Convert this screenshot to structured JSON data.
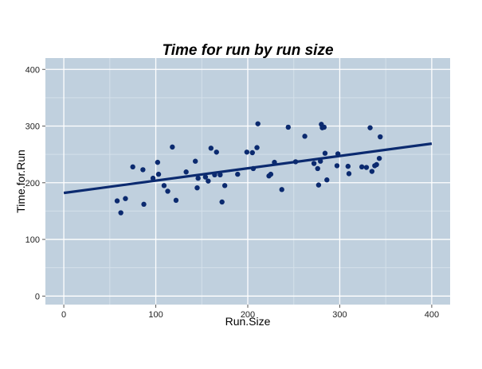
{
  "chart_data": {
    "type": "scatter",
    "title": "Time for run by run size",
    "xlabel": "Run.Size",
    "ylabel": "Time.for.Run",
    "xlim": [
      -20,
      420
    ],
    "ylim": [
      -15,
      420
    ],
    "x_ticks": [
      0,
      100,
      200,
      300,
      400
    ],
    "y_ticks": [
      0,
      100,
      200,
      300,
      400
    ],
    "grid": true,
    "legend": "none",
    "colors": {
      "panel": "#c0d0de",
      "grid_major": "#ffffff",
      "grid_minor": "#d4e0ea",
      "points": "#0b2a6f",
      "fit_line": "#0b2a6f"
    },
    "fit_line": {
      "x": [
        0,
        400
      ],
      "y": [
        182,
        269
      ]
    },
    "points": {
      "x": [
        58,
        62,
        67,
        75,
        86,
        87,
        97,
        102,
        103,
        109,
        113,
        118,
        122,
        133,
        143,
        145,
        146,
        154,
        157,
        160,
        164,
        166,
        170,
        172,
        175,
        189,
        199,
        205,
        206,
        210,
        211,
        223,
        225,
        229,
        237,
        244,
        252,
        262,
        272,
        276,
        277,
        279,
        280,
        281,
        283,
        284,
        286,
        297,
        298,
        309,
        310,
        324,
        329,
        333,
        335,
        338,
        340,
        343,
        344
      ],
      "y": [
        168,
        147,
        172,
        228,
        223,
        162,
        208,
        236,
        215,
        195,
        185,
        263,
        169,
        219,
        238,
        191,
        208,
        210,
        203,
        261,
        214,
        254,
        214,
        166,
        195,
        215,
        254,
        253,
        225,
        262,
        304,
        212,
        215,
        236,
        188,
        298,
        237,
        282,
        234,
        225,
        196,
        238,
        303,
        297,
        298,
        252,
        205,
        230,
        251,
        229,
        216,
        228,
        227,
        297,
        220,
        230,
        232,
        243,
        281
      ]
    }
  }
}
